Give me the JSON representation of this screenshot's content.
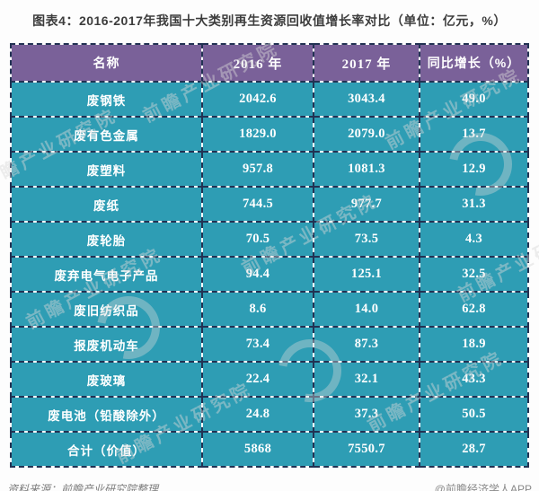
{
  "title": "图表4：2016-2017年我国十大类别再生资源回收值增长率对比（单位：亿元，%）",
  "table": {
    "headers": [
      "名称",
      "2016 年",
      "2017 年",
      "同比增长（%）"
    ],
    "rows": [
      [
        "废钢铁",
        "2042.6",
        "3043.4",
        "49.0"
      ],
      [
        "废有色金属",
        "1829.0",
        "2079.0",
        "13.7"
      ],
      [
        "废塑料",
        "957.8",
        "1081.3",
        "12.9"
      ],
      [
        "废纸",
        "744.5",
        "977.7",
        "31.3"
      ],
      [
        "废轮胎",
        "70.5",
        "73.5",
        "4.3"
      ],
      [
        "废弃电气电子产品",
        "94.4",
        "125.1",
        "32.5"
      ],
      [
        "废旧纺织品",
        "8.6",
        "14.0",
        "62.8"
      ],
      [
        "报废机动车",
        "73.4",
        "87.3",
        "18.9"
      ],
      [
        "废玻璃",
        "22.4",
        "32.1",
        "43.3"
      ],
      [
        "废电池（铅酸除外）",
        "24.8",
        "37.3",
        "50.5"
      ],
      [
        "合计（价值）",
        "5868",
        "7550.7",
        "28.7"
      ]
    ]
  },
  "footer": {
    "source": "资料来源：前瞻产业研究院整理",
    "brand": "@前瞻经济学人APP"
  },
  "watermark": {
    "text": "前瞻产业研究院"
  },
  "colors": {
    "header_bg": "#7a6199",
    "row_bg": "#2e9db4",
    "border": "#223253",
    "cell_text": "#ffffff",
    "title_text": "#3d3d3d"
  },
  "chart_data": {
    "type": "table",
    "title": "图表4：2016-2017年我国十大类别再生资源回收值增长率对比",
    "units": "亿元，%",
    "columns": [
      "名称",
      "2016年",
      "2017年",
      "同比增长（%）"
    ],
    "rows": [
      [
        "废钢铁",
        2042.6,
        3043.4,
        49.0
      ],
      [
        "废有色金属",
        1829.0,
        2079.0,
        13.7
      ],
      [
        "废塑料",
        957.8,
        1081.3,
        12.9
      ],
      [
        "废纸",
        744.5,
        977.7,
        31.3
      ],
      [
        "废轮胎",
        70.5,
        73.5,
        4.3
      ],
      [
        "废弃电气电子产品",
        94.4,
        125.1,
        32.5
      ],
      [
        "废旧纺织品",
        8.6,
        14.0,
        62.8
      ],
      [
        "报废机动车",
        73.4,
        87.3,
        18.9
      ],
      [
        "废玻璃",
        22.4,
        32.1,
        43.3
      ],
      [
        "废电池（铅酸除外）",
        24.8,
        37.3,
        50.5
      ],
      [
        "合计（价值）",
        5868,
        7550.7,
        28.7
      ]
    ],
    "source": "前瞻产业研究院"
  }
}
